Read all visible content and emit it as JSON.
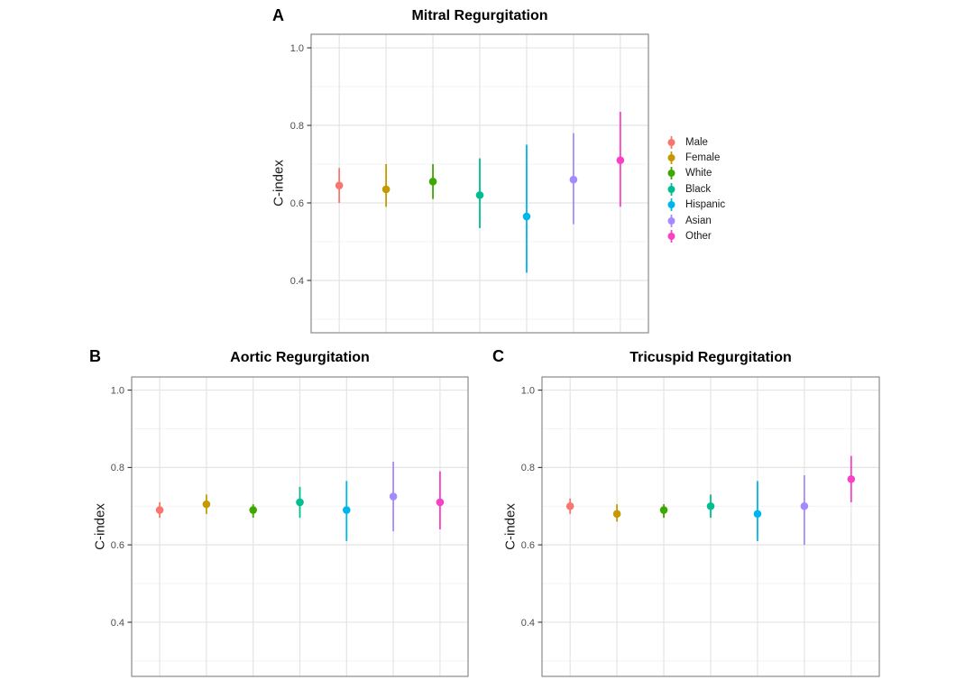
{
  "figure_colors": {
    "background": "#ffffff",
    "grid_major": "#e4e4e4",
    "grid_minor": "#f3f3f3",
    "panel_border": "#8a8a8a",
    "tick_mark": "#333333",
    "tick_text": "#4d4d4d",
    "title_text": "#000000"
  },
  "legend": {
    "items": [
      {
        "label": "Male",
        "color": "#F8766D"
      },
      {
        "label": "Female",
        "color": "#C49A00"
      },
      {
        "label": "White",
        "color": "#3CA800"
      },
      {
        "label": "Black",
        "color": "#00BE91"
      },
      {
        "label": "Hispanic",
        "color": "#00B5EC"
      },
      {
        "label": "Asian",
        "color": "#A58AFF"
      },
      {
        "label": "Other",
        "color": "#F941C5"
      }
    ]
  },
  "chart_data": [
    {
      "type": "pointrange",
      "panel_label": "A",
      "title": "Mitral Regurgitation",
      "ylabel": "C-index",
      "categories": [
        "Male",
        "Female",
        "White",
        "Black",
        "Hispanic",
        "Asian",
        "Other"
      ],
      "estimates": [
        0.645,
        0.635,
        0.655,
        0.62,
        0.565,
        0.66,
        0.71
      ],
      "lower": [
        0.6,
        0.59,
        0.61,
        0.535,
        0.42,
        0.545,
        0.59
      ],
      "upper": [
        0.69,
        0.7,
        0.7,
        0.715,
        0.75,
        0.78,
        0.835
      ],
      "ytick_labels": [
        "0.4",
        "0.6",
        "0.8",
        "1.0"
      ],
      "yticks": [
        0.4,
        0.6,
        0.8,
        1.0
      ],
      "yminor": [
        0.3,
        0.5,
        0.7,
        0.9
      ],
      "ylim": [
        0.265,
        1.035
      ],
      "grid": true,
      "legend_position": "right"
    },
    {
      "type": "pointrange",
      "panel_label": "B",
      "title": "Aortic Regurgitation",
      "ylabel": "C-index",
      "categories": [
        "Male",
        "Female",
        "White",
        "Black",
        "Hispanic",
        "Asian",
        "Other"
      ],
      "estimates": [
        0.69,
        0.705,
        0.69,
        0.71,
        0.69,
        0.725,
        0.71
      ],
      "lower": [
        0.67,
        0.68,
        0.67,
        0.67,
        0.61,
        0.635,
        0.64
      ],
      "upper": [
        0.71,
        0.73,
        0.705,
        0.75,
        0.765,
        0.815,
        0.79
      ],
      "ytick_labels": [
        "0.4",
        "0.6",
        "0.8",
        "1.0"
      ],
      "yticks": [
        0.4,
        0.6,
        0.8,
        1.0
      ],
      "yminor": [
        0.3,
        0.5,
        0.7,
        0.9
      ],
      "ylim": [
        0.26,
        1.034
      ],
      "grid": true,
      "legend_position": "none"
    },
    {
      "type": "pointrange",
      "panel_label": "C",
      "title": "Tricuspid Regurgitation",
      "ylabel": "C-index",
      "categories": [
        "Male",
        "Female",
        "White",
        "Black",
        "Hispanic",
        "Asian",
        "Other"
      ],
      "estimates": [
        0.7,
        0.68,
        0.69,
        0.7,
        0.68,
        0.7,
        0.77
      ],
      "lower": [
        0.68,
        0.66,
        0.67,
        0.67,
        0.61,
        0.6,
        0.71
      ],
      "upper": [
        0.72,
        0.705,
        0.705,
        0.73,
        0.765,
        0.78,
        0.83
      ],
      "ytick_labels": [
        "0.4",
        "0.6",
        "0.8",
        "1.0"
      ],
      "yticks": [
        0.4,
        0.6,
        0.8,
        1.0
      ],
      "yminor": [
        0.3,
        0.5,
        0.7,
        0.9
      ],
      "ylim": [
        0.26,
        1.034
      ],
      "grid": true,
      "legend_position": "none"
    }
  ]
}
